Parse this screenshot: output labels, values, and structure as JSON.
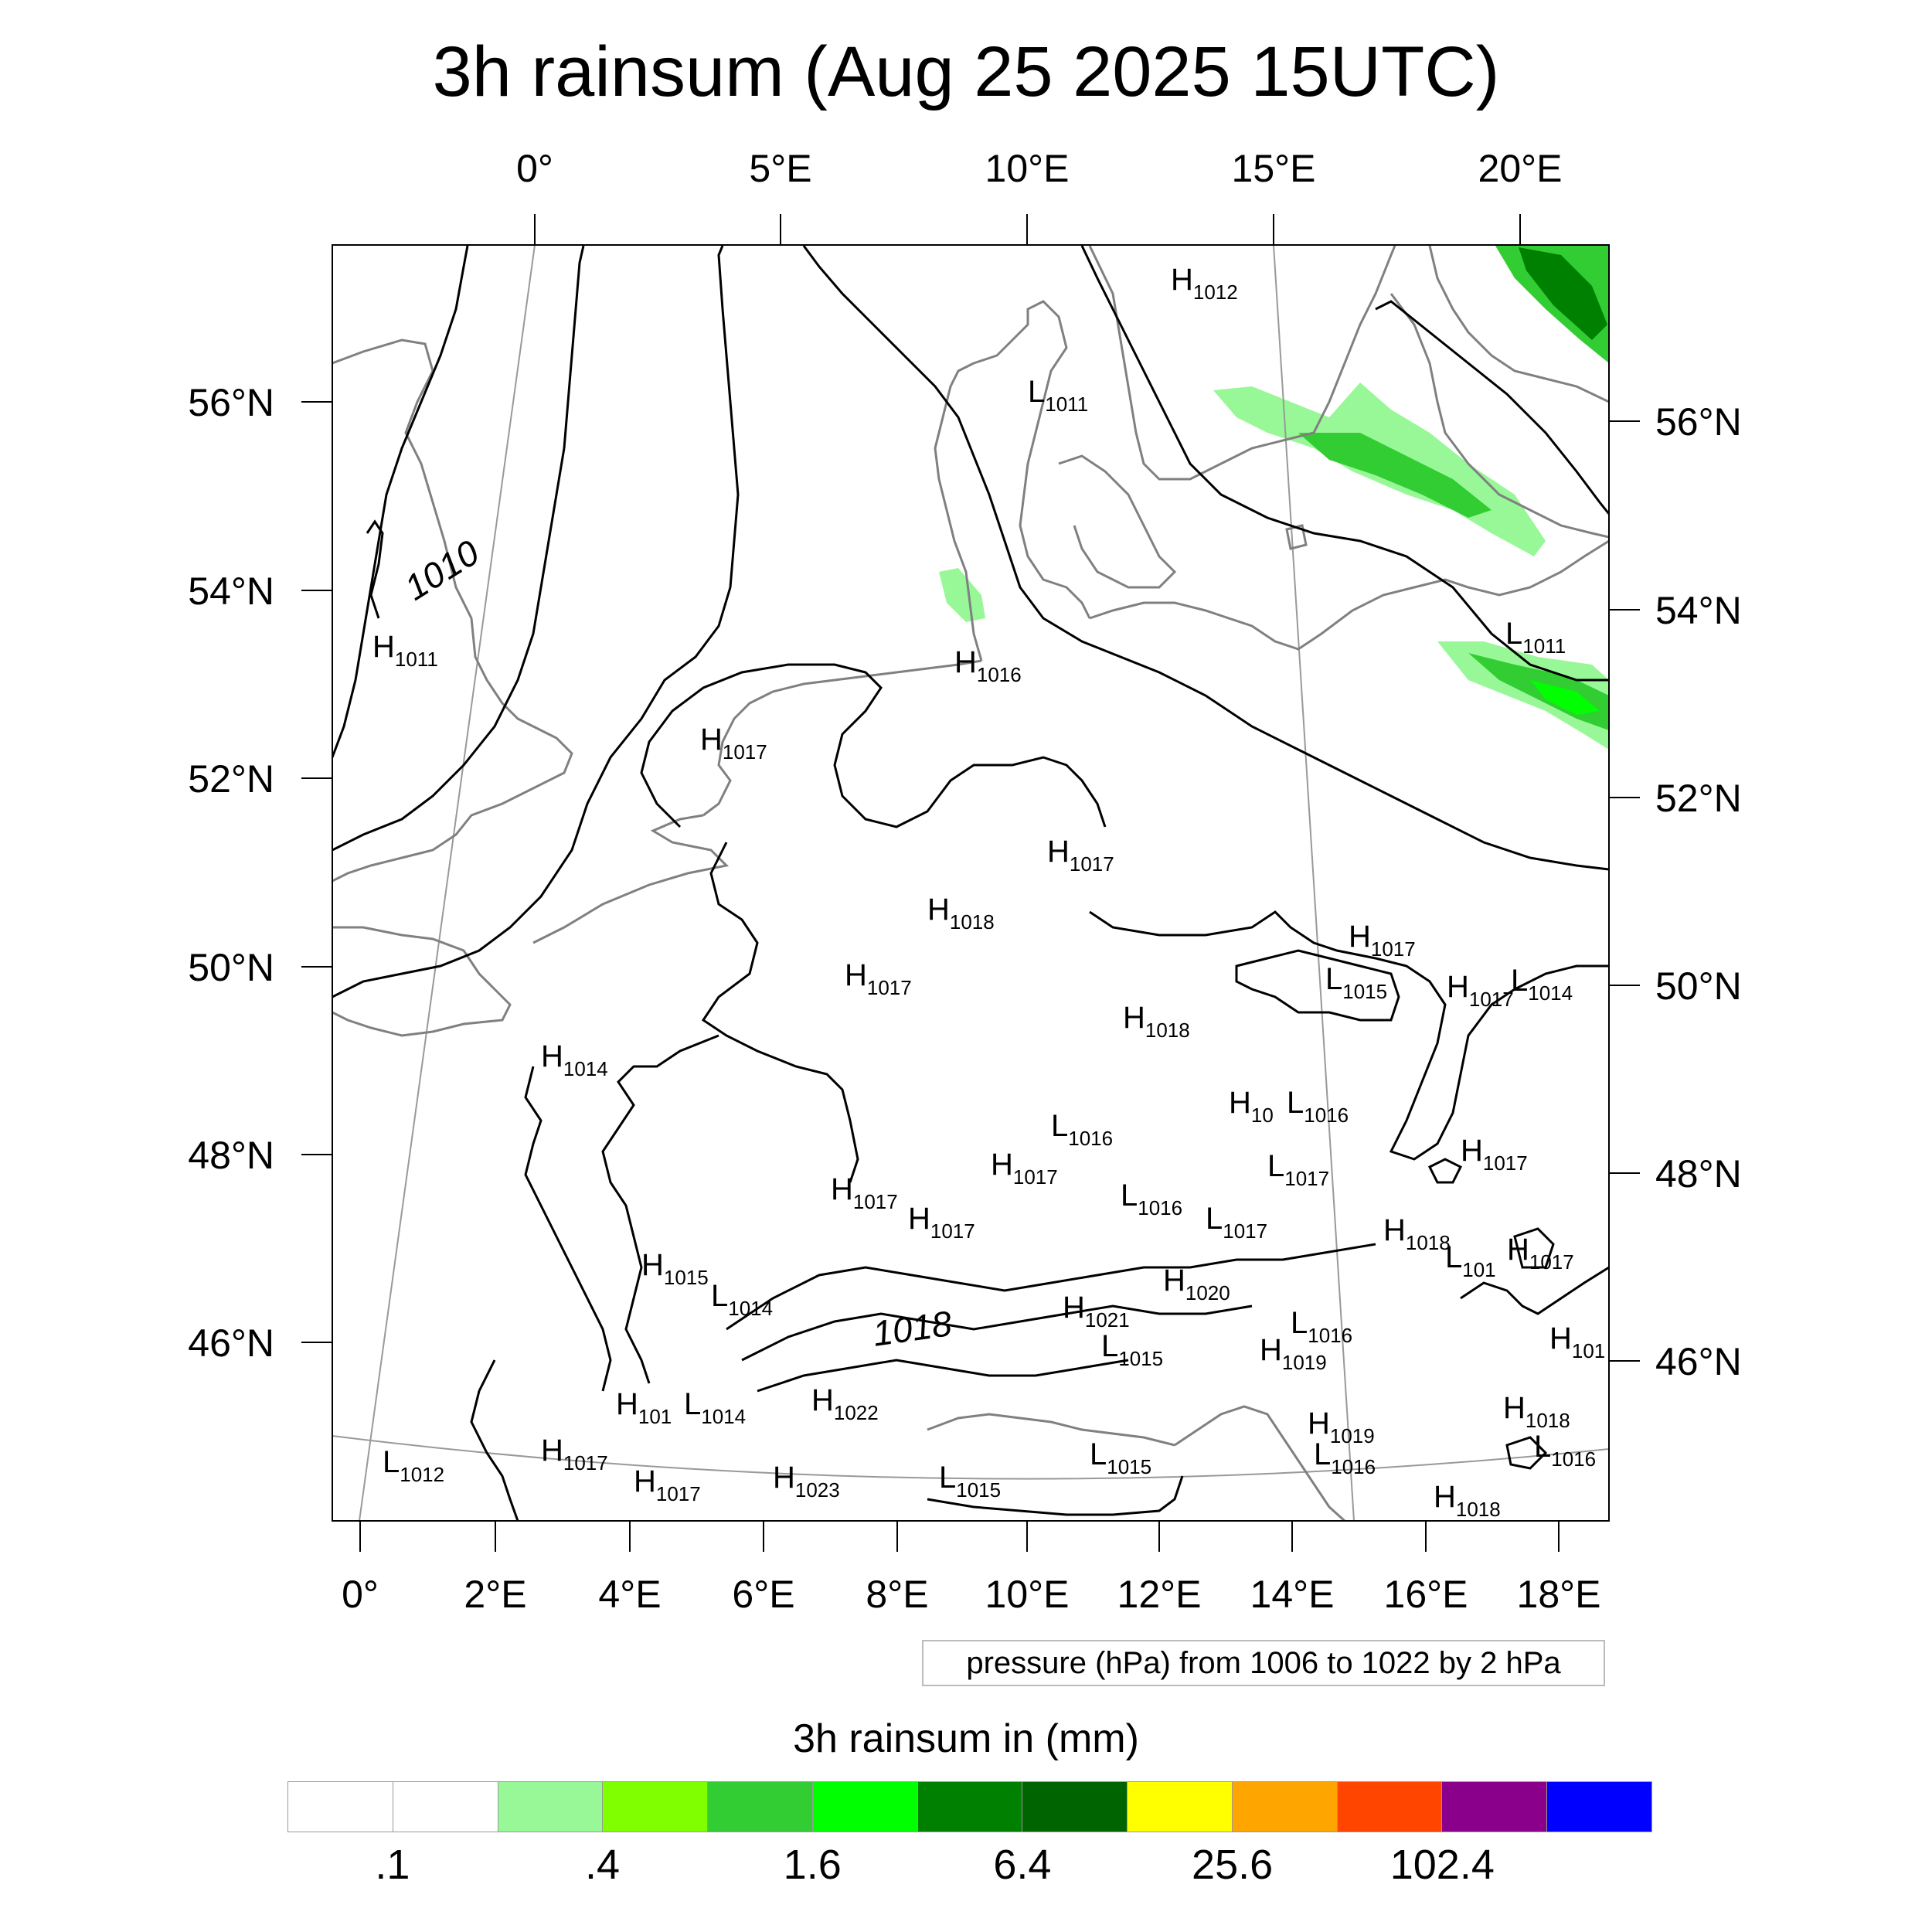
{
  "title": "3h rainsum (Aug 25 2025 15UTC)",
  "top_lon_labels": [
    "0°",
    "5°E",
    "10°E",
    "15°E",
    "20°E"
  ],
  "bottom_lon_labels": [
    "0°",
    "2°E",
    "4°E",
    "6°E",
    "8°E",
    "10°E",
    "12°E",
    "14°E",
    "16°E",
    "18°E"
  ],
  "left_lat_labels": [
    "56°N",
    "54°N",
    "52°N",
    "50°N",
    "48°N",
    "46°N"
  ],
  "right_lat_labels": [
    "56°N",
    "54°N",
    "52°N",
    "50°N",
    "48°N",
    "46°N"
  ],
  "isobar_labels": [
    "1010",
    "1018"
  ],
  "pressure_centers": [
    {
      "letter": "H",
      "value": "1012"
    },
    {
      "letter": "L",
      "value": "1011"
    },
    {
      "letter": "H",
      "value": "1011"
    },
    {
      "letter": "H",
      "value": "1016"
    },
    {
      "letter": "L",
      "value": "1011"
    },
    {
      "letter": "H",
      "value": "1017"
    },
    {
      "letter": "H",
      "value": "1017"
    },
    {
      "letter": "H",
      "value": "1018"
    },
    {
      "letter": "H",
      "value": "1017"
    },
    {
      "letter": "H",
      "value": "1018"
    },
    {
      "letter": "H",
      "value": "1017"
    },
    {
      "letter": "L",
      "value": "1015"
    },
    {
      "letter": "H",
      "value": "1017"
    },
    {
      "letter": "L",
      "value": "1014"
    },
    {
      "letter": "H",
      "value": "1014"
    },
    {
      "letter": "H",
      "value": "10"
    },
    {
      "letter": "L",
      "value": "1016"
    },
    {
      "letter": "L",
      "value": "1016"
    },
    {
      "letter": "H",
      "value": "1017"
    },
    {
      "letter": "L",
      "value": "1017"
    },
    {
      "letter": "H",
      "value": "1017"
    },
    {
      "letter": "H",
      "value": "1017"
    },
    {
      "letter": "L",
      "value": "1016"
    },
    {
      "letter": "H",
      "value": "1017"
    },
    {
      "letter": "L",
      "value": "1017"
    },
    {
      "letter": "H",
      "value": "1018"
    },
    {
      "letter": "L",
      "value": "101"
    },
    {
      "letter": "H",
      "value": "1017"
    },
    {
      "letter": "H",
      "value": "1015"
    },
    {
      "letter": "L",
      "value": "1014"
    },
    {
      "letter": "H",
      "value": "1020"
    },
    {
      "letter": "H",
      "value": "1021"
    },
    {
      "letter": "L",
      "value": "1015"
    },
    {
      "letter": "L",
      "value": "1016"
    },
    {
      "letter": "H",
      "value": "1019"
    },
    {
      "letter": "H",
      "value": "101"
    },
    {
      "letter": "H",
      "value": "101"
    },
    {
      "letter": "L",
      "value": "1014"
    },
    {
      "letter": "H",
      "value": "1022"
    },
    {
      "letter": "H",
      "value": "1018"
    },
    {
      "letter": "L",
      "value": "1012"
    },
    {
      "letter": "H",
      "value": "1017"
    },
    {
      "letter": "H",
      "value": "1017"
    },
    {
      "letter": "H",
      "value": "1023"
    },
    {
      "letter": "L",
      "value": "1015"
    },
    {
      "letter": "L",
      "value": "1015"
    },
    {
      "letter": "H",
      "value": "1019"
    },
    {
      "letter": "L",
      "value": "1016"
    },
    {
      "letter": "L",
      "value": "1016"
    },
    {
      "letter": "H",
      "value": "1018"
    }
  ],
  "pressure_note": "pressure (hPa) from 1006 to 1022 by 2 hPa",
  "legend": {
    "title": "3h rainsum in (mm)",
    "colors": [
      "#ffffff",
      "#ffffff",
      "#98f898",
      "#80ff00",
      "#32cd32",
      "#00ff00",
      "#008000",
      "#006400",
      "#ffff00",
      "#ffa500",
      "#ff4500",
      "#8b008b",
      "#0000ff"
    ],
    "tick_labels": [
      ".1",
      ".4",
      "1.6",
      "6.4",
      "25.6",
      "102.4"
    ]
  }
}
